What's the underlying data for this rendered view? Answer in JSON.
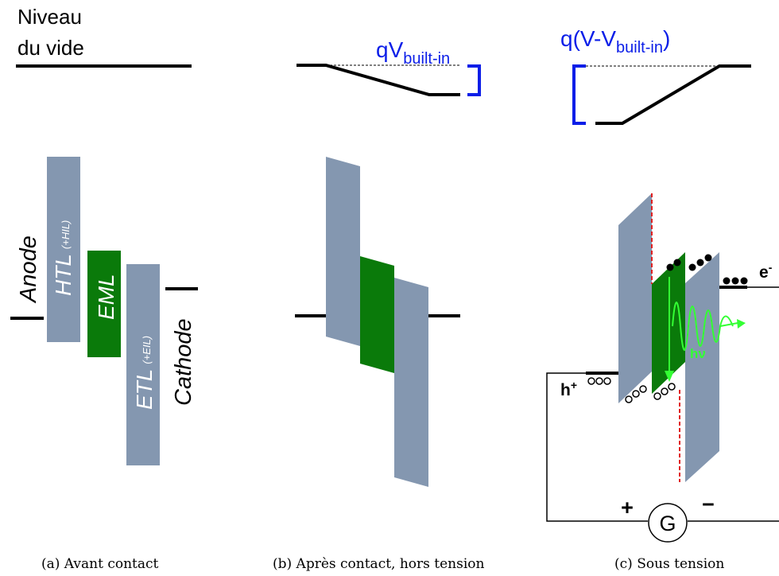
{
  "colors": {
    "layer_gray": "#8497b0",
    "eml_green": "#0a7a0a",
    "blue": "#0b1ee8",
    "photon_green": "#33ff33",
    "red": "#e02020",
    "black": "#000000"
  },
  "panel_a": {
    "vacuum_line1": "Niveau",
    "vacuum_line2": "du vide",
    "anode": "Anode",
    "htl": "HTL",
    "htl_sub": "(+HIL)",
    "eml": "EML",
    "etl": "ETL",
    "etl_sub": "(+EIL)",
    "cathode": "Cathode",
    "caption": "(a) Avant contact"
  },
  "panel_b": {
    "label_q": "qV",
    "label_sub": "built-in",
    "caption": "(b) Après contact, hors tension"
  },
  "panel_c": {
    "label_q": "q(V-V",
    "label_sub": "built-in",
    "label_close": ")",
    "hole_label": "h",
    "hole_sup": "+",
    "electron_label": "e",
    "electron_sup": "-",
    "photon_label": "hν",
    "plus": "+",
    "minus": "−",
    "generator": "G",
    "caption": "(c) Sous tension"
  }
}
